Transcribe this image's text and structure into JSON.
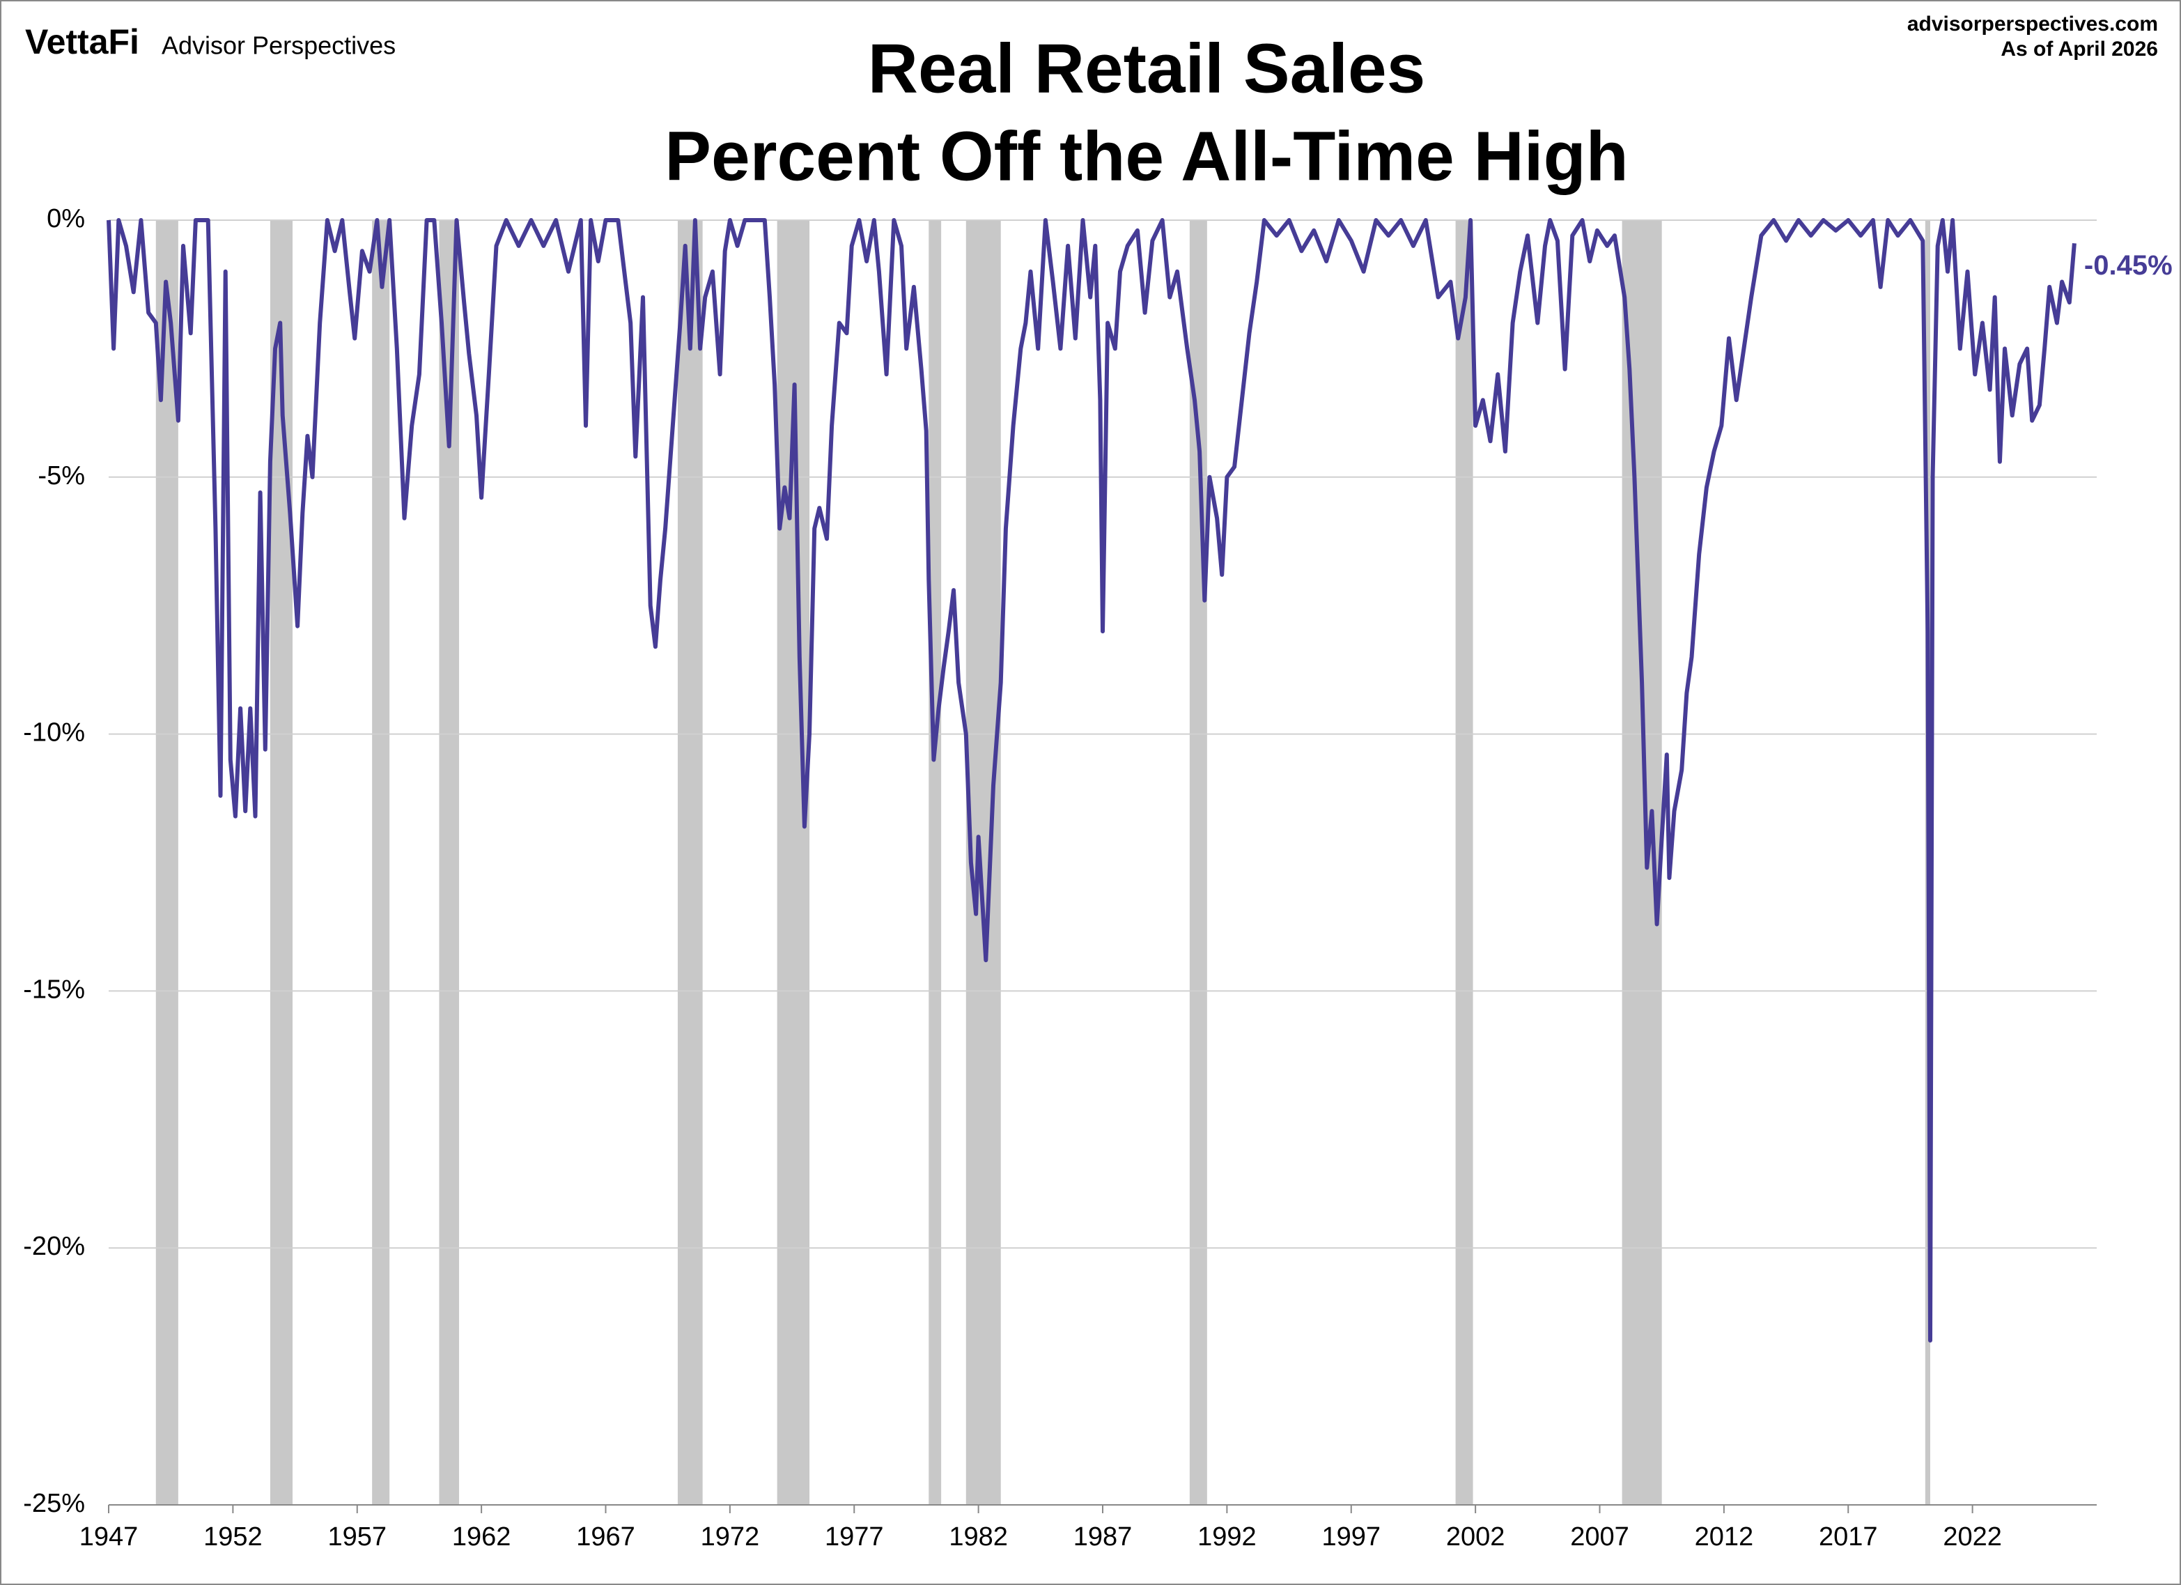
{
  "header": {
    "logo": "VettaFi",
    "brand": "Advisor Perspectives",
    "site": "advisorperspectives.com",
    "as_of": "As of April 2026"
  },
  "chart_data": {
    "type": "line",
    "title": "Real Retail Sales",
    "subtitle": "Percent Off the All-Time High",
    "end_label": "-0.45%",
    "xlim": [
      1947,
      2027
    ],
    "xticks": [
      1947,
      1952,
      1957,
      1962,
      1967,
      1972,
      1977,
      1982,
      1987,
      1992,
      1997,
      2002,
      2007,
      2012,
      2017,
      2022
    ],
    "ylim": [
      -25,
      0
    ],
    "yticks": [
      {
        "value": 0,
        "label": "0%"
      },
      {
        "value": -5,
        "label": "-5%"
      },
      {
        "value": -10,
        "label": "-10%"
      },
      {
        "value": -15,
        "label": "-15%"
      },
      {
        "value": -20,
        "label": "-20%"
      },
      {
        "value": -25,
        "label": "-25%"
      }
    ],
    "grid": true,
    "recession_color": "#c8c8c8",
    "recessions": [
      [
        1948.9,
        1949.8
      ],
      [
        1953.5,
        1954.4
      ],
      [
        1957.6,
        1958.3
      ],
      [
        1960.3,
        1961.1
      ],
      [
        1969.9,
        1970.9
      ],
      [
        1973.9,
        1975.2
      ],
      [
        1980.0,
        1980.5
      ],
      [
        1981.5,
        1982.9
      ],
      [
        1990.5,
        1991.2
      ],
      [
        2001.2,
        2001.9
      ],
      [
        2007.9,
        2009.5
      ],
      [
        2020.1,
        2020.3
      ]
    ],
    "series": [
      {
        "color": "#463c96",
        "x": [
          1947.0,
          1947.2,
          1947.4,
          1947.7,
          1948.0,
          1948.3,
          1948.6,
          1948.9,
          1949.1,
          1949.3,
          1949.5,
          1949.8,
          1950.0,
          1950.3,
          1950.5,
          1951.0,
          1951.3,
          1951.5,
          1951.7,
          1951.9,
          1952.1,
          1952.3,
          1952.5,
          1952.7,
          1952.9,
          1953.1,
          1953.3,
          1953.5,
          1953.7,
          1953.9,
          1954.0,
          1954.3,
          1954.6,
          1954.8,
          1955.0,
          1955.2,
          1955.5,
          1955.8,
          1956.1,
          1956.4,
          1956.7,
          1956.9,
          1957.2,
          1957.5,
          1957.8,
          1958.0,
          1958.3,
          1958.6,
          1958.9,
          1959.2,
          1959.5,
          1959.8,
          1960.1,
          1960.4,
          1960.7,
          1961.0,
          1961.3,
          1961.5,
          1961.8,
          1962.0,
          1962.3,
          1962.6,
          1963.0,
          1963.5,
          1964.0,
          1964.5,
          1965.0,
          1965.5,
          1966.0,
          1966.2,
          1966.4,
          1966.7,
          1967.0,
          1967.5,
          1967.8,
          1968.0,
          1968.2,
          1968.5,
          1968.8,
          1969.0,
          1969.2,
          1969.4,
          1969.7,
          1970.0,
          1970.2,
          1970.4,
          1970.6,
          1970.8,
          1971.0,
          1971.3,
          1971.6,
          1971.8,
          1972.0,
          1972.3,
          1972.6,
          1973.0,
          1973.4,
          1973.6,
          1973.8,
          1974.0,
          1974.2,
          1974.4,
          1974.6,
          1974.8,
          1975.0,
          1975.2,
          1975.4,
          1975.6,
          1975.9,
          1976.1,
          1976.4,
          1976.7,
          1976.9,
          1977.2,
          1977.5,
          1977.8,
          1978.0,
          1978.3,
          1978.6,
          1978.9,
          1979.1,
          1979.4,
          1979.7,
          1979.9,
          1980.0,
          1980.2,
          1980.4,
          1980.6,
          1980.8,
          1981.0,
          1981.2,
          1981.5,
          1981.7,
          1981.9,
          1982.0,
          1982.3,
          1982.6,
          1982.9,
          1983.1,
          1983.4,
          1983.7,
          1983.9,
          1984.1,
          1984.4,
          1984.7,
          1985.0,
          1985.3,
          1985.6,
          1985.9,
          1986.2,
          1986.5,
          1986.7,
          1986.9,
          1987.0,
          1987.2,
          1987.5,
          1987.7,
          1988.0,
          1988.4,
          1988.7,
          1989.0,
          1989.4,
          1989.7,
          1990.0,
          1990.4,
          1990.7,
          1990.9,
          1991.1,
          1991.3,
          1991.6,
          1991.8,
          1992.0,
          1992.3,
          1992.6,
          1992.9,
          1993.2,
          1993.5,
          1994.0,
          1994.5,
          1995.0,
          1995.5,
          1996.0,
          1996.5,
          1997.0,
          1997.5,
          1998.0,
          1998.5,
          1999.0,
          1999.5,
          2000.0,
          2000.5,
          2001.0,
          2001.3,
          2001.6,
          2001.8,
          2002.0,
          2002.3,
          2002.6,
          2002.9,
          2003.2,
          2003.5,
          2003.8,
          2004.1,
          2004.5,
          2004.8,
          2005.0,
          2005.3,
          2005.6,
          2005.9,
          2006.3,
          2006.6,
          2006.9,
          2007.3,
          2007.6,
          2007.8,
          2008.0,
          2008.2,
          2008.4,
          2008.7,
          2008.9,
          2009.1,
          2009.3,
          2009.5,
          2009.7,
          2009.8,
          2010.0,
          2010.3,
          2010.5,
          2010.7,
          2011.0,
          2011.3,
          2011.6,
          2011.9,
          2012.2,
          2012.5,
          2012.8,
          2013.1,
          2013.5,
          2014.0,
          2014.5,
          2015.0,
          2015.5,
          2016.0,
          2016.5,
          2017.0,
          2017.5,
          2018.0,
          2018.3,
          2018.6,
          2019.0,
          2019.5,
          2020.0,
          2020.2,
          2020.3,
          2020.4,
          2020.6,
          2020.8,
          2021.0,
          2021.2,
          2021.5,
          2021.8,
          2022.1,
          2022.4,
          2022.7,
          2022.9,
          2023.1,
          2023.3,
          2023.6,
          2023.9,
          2024.2,
          2024.4,
          2024.7,
          2024.9,
          2025.1,
          2025.4,
          2025.6,
          2025.9,
          2026.1
        ],
        "values": [
          0,
          -2.5,
          0,
          -0.5,
          -1.4,
          0,
          -1.8,
          -2.0,
          -3.5,
          -1.2,
          -2.0,
          -3.9,
          -0.5,
          -2.2,
          0,
          0,
          -6,
          -11.2,
          -1.0,
          -10.5,
          -11.6,
          -9.5,
          -11.5,
          -9.5,
          -11.6,
          -5.3,
          -10.3,
          -4.7,
          -2.5,
          -2.0,
          -3.8,
          -5.7,
          -7.9,
          -5.7,
          -4.2,
          -5.0,
          -2.0,
          0,
          -0.6,
          0,
          -1.4,
          -2.3,
          -0.6,
          -1.0,
          0,
          -1.3,
          0,
          -2.5,
          -5.8,
          -4.0,
          -3.0,
          0,
          0,
          -2.0,
          -4.4,
          0,
          -1.6,
          -2.6,
          -3.8,
          -5.4,
          -3.0,
          -0.5,
          0,
          -0.5,
          0,
          -0.5,
          0,
          -1.0,
          0,
          -4.0,
          0,
          -0.8,
          0,
          0,
          -1.2,
          -2.0,
          -4.6,
          -1.5,
          -7.5,
          -8.3,
          -7.0,
          -6.0,
          -4.0,
          -2.0,
          -0.5,
          -2.5,
          0,
          -2.5,
          -1.5,
          -1.0,
          -3.0,
          -0.6,
          0,
          -0.5,
          0,
          0,
          0,
          -1.5,
          -3.2,
          -6.0,
          -5.2,
          -5.8,
          -3.2,
          -8.5,
          -11.8,
          -10.0,
          -6.0,
          -5.6,
          -6.2,
          -4.0,
          -2.0,
          -2.2,
          -0.5,
          0,
          -0.8,
          0,
          -1.0,
          -3.0,
          0,
          -0.5,
          -2.5,
          -1.3,
          -2.9,
          -4.1,
          -7.0,
          -10.5,
          -9.5,
          -8.7,
          -8.0,
          -7.2,
          -9.0,
          -10.0,
          -12.5,
          -13.5,
          -12.0,
          -14.4,
          -11.0,
          -9.0,
          -6.0,
          -4.0,
          -2.5,
          -2.0,
          -1.0,
          -2.5,
          0,
          -1.2,
          -2.5,
          -0.5,
          -2.3,
          0,
          -1.5,
          -0.5,
          -3.5,
          -8.0,
          -2.0,
          -2.5,
          -1.0,
          -0.5,
          -0.2,
          -1.8,
          -0.4,
          0,
          -1.5,
          -1.0,
          -2.5,
          -3.5,
          -4.5,
          -7.4,
          -5.0,
          -5.8,
          -6.9,
          -5.0,
          -4.8,
          -3.5,
          -2.2,
          -1.2,
          0,
          -0.3,
          0,
          -0.6,
          -0.2,
          -0.8,
          0,
          -0.4,
          -1.0,
          0,
          -0.3,
          0,
          -0.5,
          0,
          -1.5,
          -1.2,
          -2.3,
          -1.5,
          0,
          -4.0,
          -3.5,
          -4.3,
          -3.0,
          -4.5,
          -2.0,
          -1.0,
          -0.3,
          -2.0,
          -0.5,
          0,
          -0.4,
          -2.9,
          -0.3,
          0,
          -0.8,
          -0.2,
          -0.5,
          -0.3,
          -0.9,
          -1.5,
          -2.9,
          -5.0,
          -9.0,
          -12.6,
          -11.5,
          -13.7,
          -12.0,
          -10.4,
          -12.8,
          -11.5,
          -10.7,
          -9.2,
          -8.5,
          -6.5,
          -5.2,
          -4.5,
          -4.0,
          -2.3,
          -3.5,
          -2.5,
          -1.5,
          -0.3,
          0,
          -0.4,
          0,
          -0.3,
          0,
          -0.2,
          0,
          -0.3,
          0,
          -1.3,
          0,
          -0.3,
          0,
          -0.4,
          -8.0,
          -21.8,
          -5.0,
          -0.5,
          0,
          -1.0,
          0,
          -2.5,
          -1.0,
          -3.0,
          -2.0,
          -3.3,
          -1.5,
          -4.7,
          -2.5,
          -3.8,
          -2.8,
          -2.5,
          -3.9,
          -3.6,
          -2.5,
          -1.3,
          -2.0,
          -1.2,
          -1.6,
          -0.45
        ]
      }
    ]
  }
}
